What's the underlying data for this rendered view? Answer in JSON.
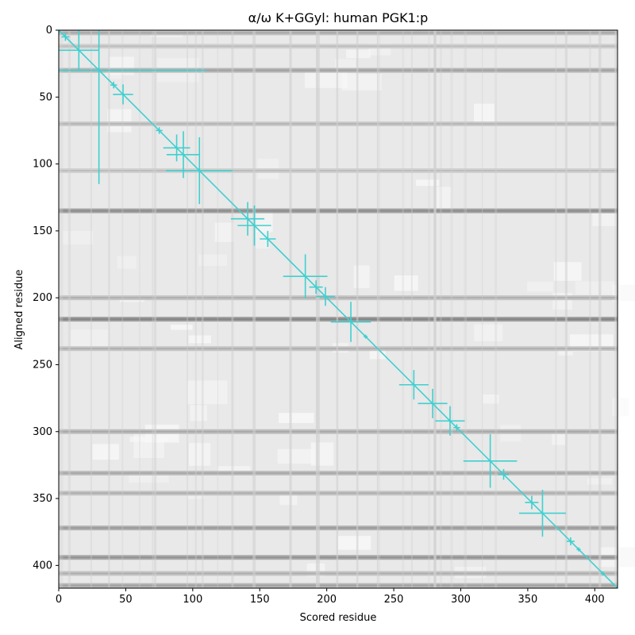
{
  "chart_data": {
    "type": "heatmap",
    "title": "α/ω K+GGyl: human PGK1:p",
    "xlabel": "Scored residue",
    "ylabel": "Aligned residue",
    "xlim": [
      0,
      417
    ],
    "ylim": [
      417,
      0
    ],
    "x_ticks": [
      0,
      50,
      100,
      150,
      200,
      250,
      300,
      350,
      400
    ],
    "y_ticks": [
      0,
      50,
      100,
      150,
      200,
      250,
      300,
      350,
      400
    ],
    "colormap": "grayscale",
    "diagonal_line": {
      "from": [
        0,
        0
      ],
      "to": [
        417,
        417
      ],
      "color": "#3fd0cf"
    },
    "crosshair_color": "#3fd0cf",
    "crosshairs": [
      {
        "x": 5,
        "y": 5,
        "w": 6,
        "h": 6
      },
      {
        "x": 15,
        "y": 15,
        "w": 30,
        "h": 30
      },
      {
        "x": 30,
        "y": 30,
        "w": 160,
        "h": 170
      },
      {
        "x": 41,
        "y": 41,
        "w": 5,
        "h": 5
      },
      {
        "x": 48,
        "y": 48,
        "w": 15,
        "h": 15
      },
      {
        "x": 75,
        "y": 75,
        "w": 5,
        "h": 5
      },
      {
        "x": 88,
        "y": 88,
        "w": 20,
        "h": 20
      },
      {
        "x": 93,
        "y": 93,
        "w": 25,
        "h": 35
      },
      {
        "x": 105,
        "y": 105,
        "w": 50,
        "h": 50
      },
      {
        "x": 141,
        "y": 141,
        "w": 25,
        "h": 25
      },
      {
        "x": 146,
        "y": 146,
        "w": 25,
        "h": 30
      },
      {
        "x": 156,
        "y": 156,
        "w": 12,
        "h": 12
      },
      {
        "x": 184,
        "y": 184,
        "w": 33,
        "h": 33
      },
      {
        "x": 192,
        "y": 192,
        "w": 10,
        "h": 10
      },
      {
        "x": 199,
        "y": 199,
        "w": 14,
        "h": 14
      },
      {
        "x": 218,
        "y": 218,
        "w": 30,
        "h": 30
      },
      {
        "x": 229,
        "y": 229,
        "w": 3,
        "h": 3
      },
      {
        "x": 265,
        "y": 265,
        "w": 22,
        "h": 22
      },
      {
        "x": 279,
        "y": 279,
        "w": 22,
        "h": 22
      },
      {
        "x": 292,
        "y": 292,
        "w": 22,
        "h": 22
      },
      {
        "x": 297,
        "y": 297,
        "w": 5,
        "h": 5
      },
      {
        "x": 322,
        "y": 322,
        "w": 40,
        "h": 40
      },
      {
        "x": 332,
        "y": 332,
        "w": 8,
        "h": 8
      },
      {
        "x": 353,
        "y": 353,
        "w": 10,
        "h": 10
      },
      {
        "x": 361,
        "y": 361,
        "w": 35,
        "h": 35
      },
      {
        "x": 382,
        "y": 382,
        "w": 6,
        "h": 6
      },
      {
        "x": 388,
        "y": 388,
        "w": 3,
        "h": 3
      },
      {
        "x": 406,
        "y": 406,
        "w": 3,
        "h": 3
      }
    ],
    "dark_row_bands": [
      {
        "y": 2,
        "intensity": 0.35
      },
      {
        "y": 12,
        "intensity": 0.2
      },
      {
        "y": 30,
        "intensity": 0.4
      },
      {
        "y": 70,
        "intensity": 0.25
      },
      {
        "y": 105,
        "intensity": 0.2
      },
      {
        "y": 135,
        "intensity": 0.55
      },
      {
        "y": 200,
        "intensity": 0.3
      },
      {
        "y": 216,
        "intensity": 0.6
      },
      {
        "y": 238,
        "intensity": 0.3
      },
      {
        "y": 300,
        "intensity": 0.35
      },
      {
        "y": 331,
        "intensity": 0.35
      },
      {
        "y": 346,
        "intensity": 0.3
      },
      {
        "y": 372,
        "intensity": 0.45
      },
      {
        "y": 394,
        "intensity": 0.5
      },
      {
        "y": 406,
        "intensity": 0.3
      },
      {
        "y": 415,
        "intensity": 0.4
      }
    ]
  }
}
